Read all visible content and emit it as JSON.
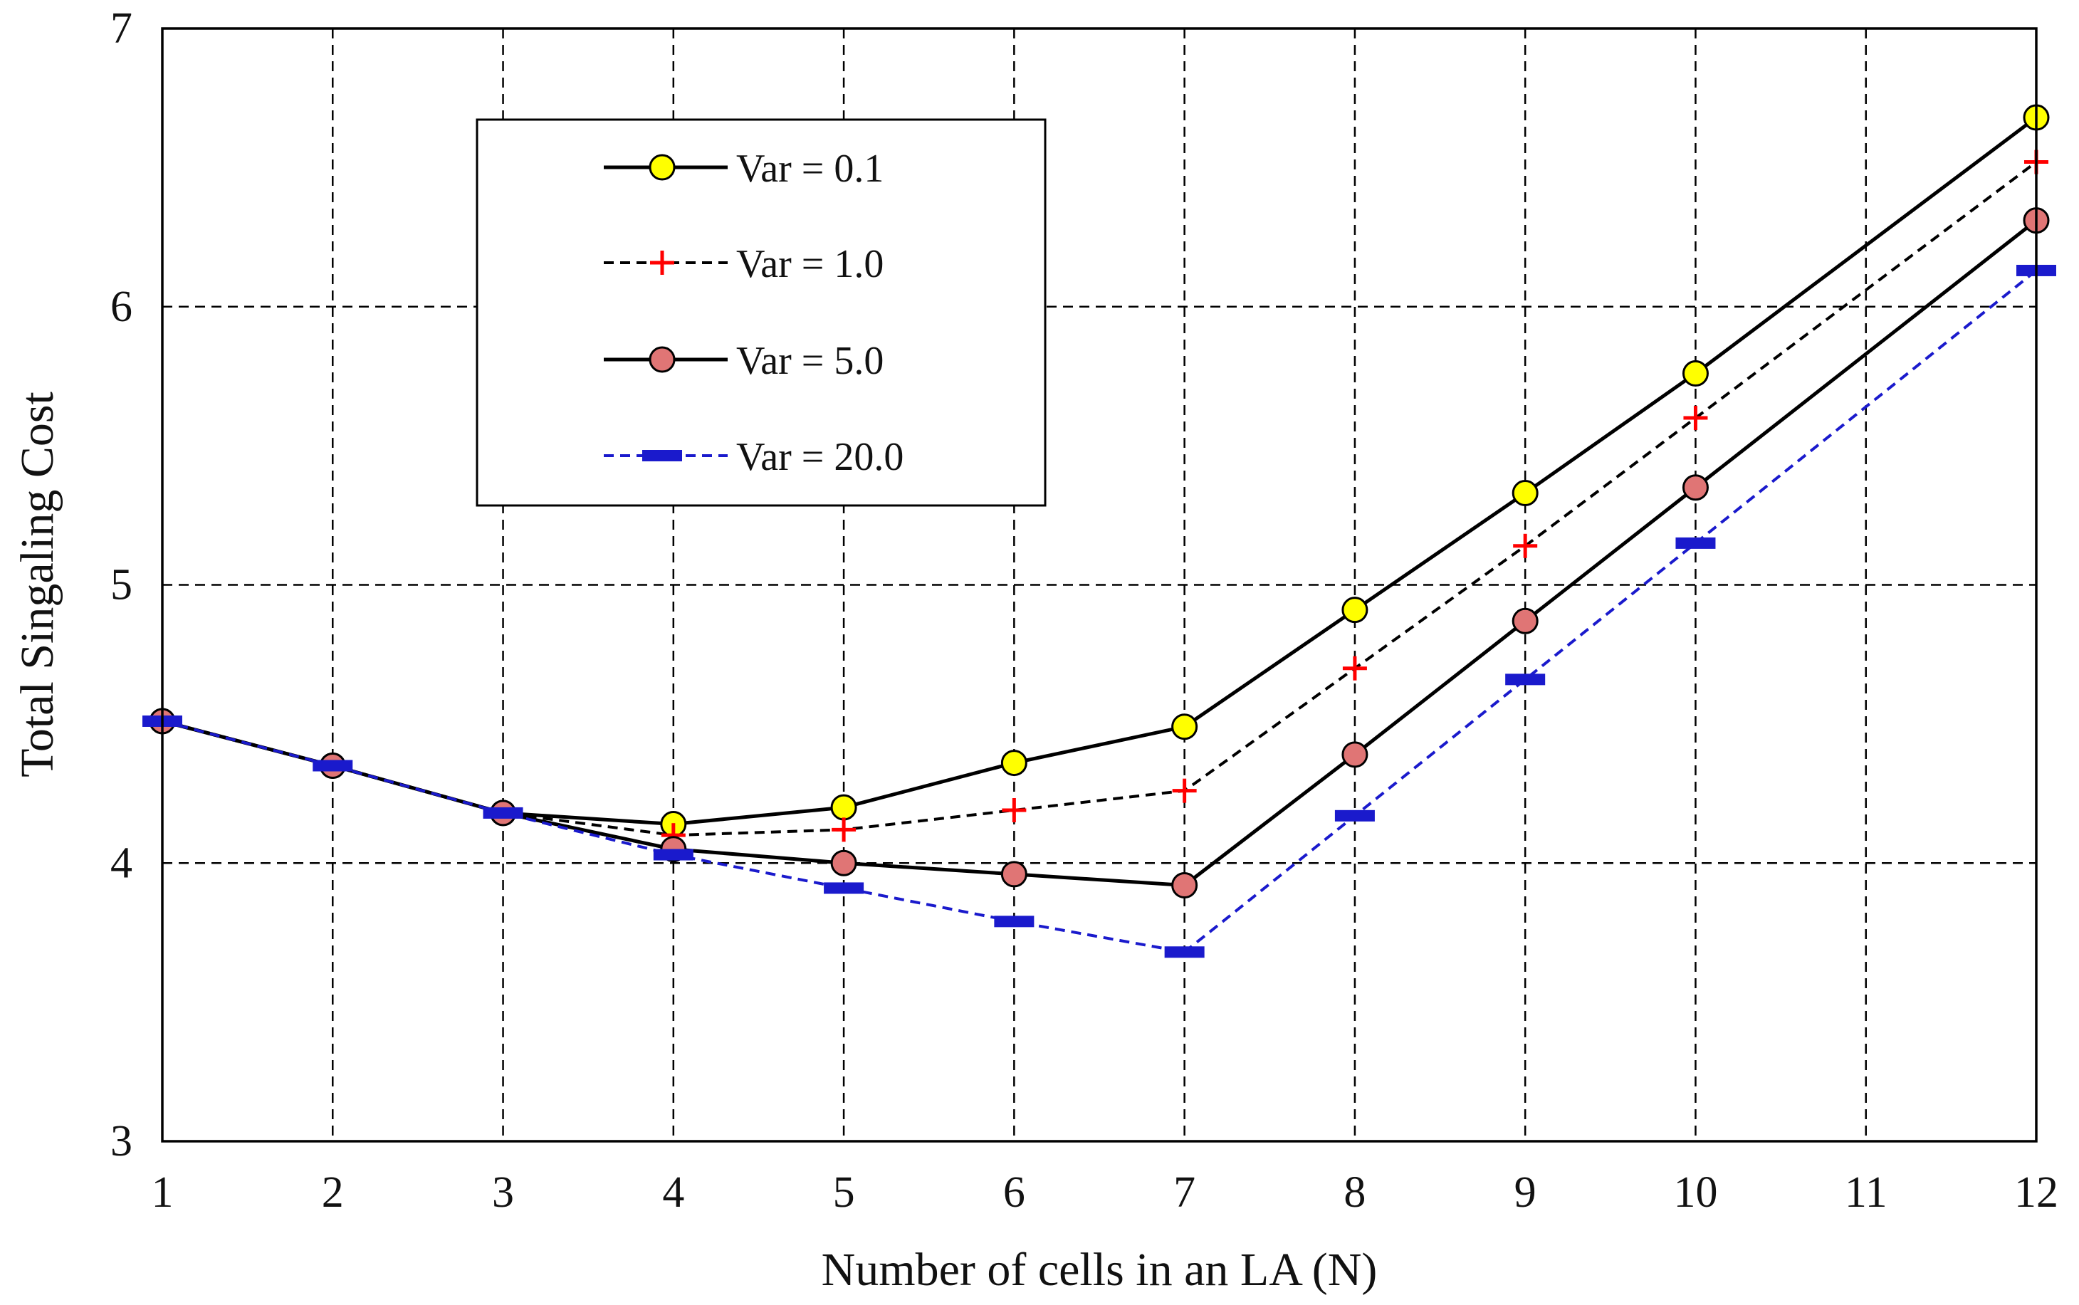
{
  "chart_data": {
    "type": "line",
    "title": "",
    "xlabel": "Number of cells in an LA (N)",
    "ylabel": "Total Singaling Cost",
    "x": [
      1,
      2,
      3,
      4,
      5,
      6,
      7,
      8,
      9,
      10,
      11,
      12
    ],
    "xlim": [
      1,
      12
    ],
    "ylim": [
      3,
      7
    ],
    "xticks": [
      "1",
      "2",
      "3",
      "4",
      "5",
      "6",
      "7",
      "8",
      "9",
      "10",
      "11",
      "12"
    ],
    "yticks": [
      "3",
      "4",
      "5",
      "6",
      "7"
    ],
    "grid": true,
    "legend_position": "top-left",
    "series": [
      {
        "name": "Var = 0.1",
        "marker": "circle",
        "line": "solid",
        "color": "#000000",
        "marker_color": "#ffff00",
        "x": [
          1,
          2,
          3,
          4,
          5,
          6,
          7,
          8,
          9,
          10,
          12
        ],
        "values": [
          4.51,
          4.35,
          4.18,
          4.14,
          4.2,
          4.36,
          4.49,
          4.91,
          5.33,
          5.76,
          6.68
        ]
      },
      {
        "name": "Var = 1.0",
        "marker": "plus",
        "line": "dashed",
        "color": "#000000",
        "marker_color": "#ff0000",
        "x": [
          1,
          2,
          3,
          4,
          5,
          6,
          7,
          8,
          9,
          10,
          12
        ],
        "values": [
          4.51,
          4.35,
          4.18,
          4.1,
          4.12,
          4.19,
          4.26,
          4.7,
          5.14,
          5.6,
          6.52
        ]
      },
      {
        "name": "Var = 5.0",
        "marker": "circle",
        "line": "solid",
        "color": "#000000",
        "marker_color": "#e07575",
        "x": [
          1,
          2,
          3,
          4,
          5,
          6,
          7,
          8,
          9,
          10,
          12
        ],
        "values": [
          4.51,
          4.35,
          4.18,
          4.05,
          4.0,
          3.96,
          3.92,
          4.39,
          4.87,
          5.35,
          6.31
        ]
      },
      {
        "name": "Var = 20.0",
        "marker": "dash",
        "line": "dashed",
        "color": "#1a1acc",
        "marker_color": "#1a1acc",
        "x": [
          1,
          2,
          3,
          4,
          5,
          6,
          7,
          8,
          9,
          10,
          12
        ],
        "values": [
          4.51,
          4.35,
          4.18,
          4.03,
          3.91,
          3.79,
          3.68,
          4.17,
          4.66,
          5.15,
          6.13
        ]
      }
    ]
  }
}
